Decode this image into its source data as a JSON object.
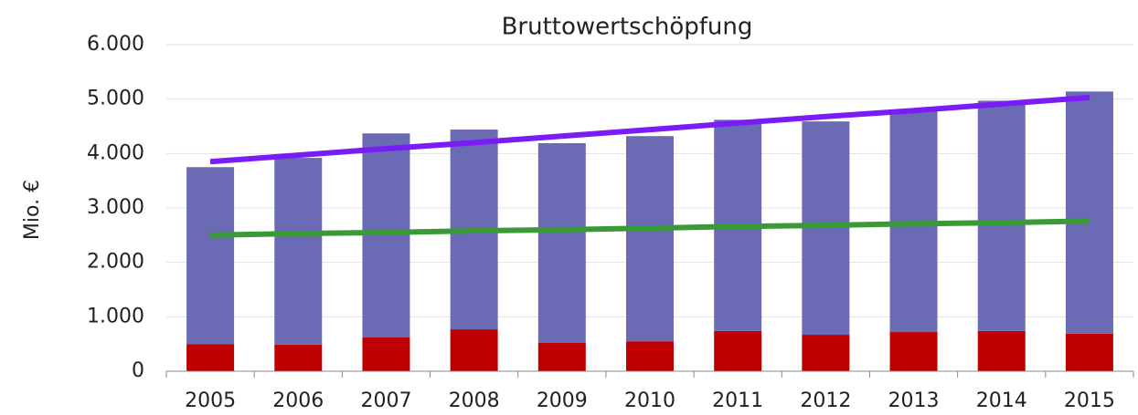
{
  "chart_data": {
    "type": "bar",
    "stacked": true,
    "title": "Bruttowertschöpfung",
    "y_label": "Mio. €",
    "categories": [
      "2005",
      "2006",
      "2007",
      "2008",
      "2009",
      "2010",
      "2011",
      "2012",
      "2013",
      "2014",
      "2015"
    ],
    "series": [
      {
        "type": "bar",
        "color": "#c00000",
        "values": [
          500,
          490,
          620,
          770,
          520,
          550,
          740,
          670,
          720,
          740,
          690
        ]
      },
      {
        "type": "bar",
        "color": "#6a6bb4",
        "values": [
          3250,
          3430,
          3750,
          3670,
          3670,
          3770,
          3880,
          3920,
          4090,
          4230,
          4450
        ]
      },
      {
        "type": "line",
        "color": "#7a1cf5",
        "values": [
          3850,
          3970,
          4090,
          4200,
          4320,
          4440,
          4560,
          4680,
          4790,
          4910,
          5030
        ]
      },
      {
        "type": "line",
        "color": "#3a9a36",
        "values": [
          2500,
          2530,
          2550,
          2580,
          2600,
          2630,
          2660,
          2680,
          2710,
          2730,
          2760
        ]
      }
    ],
    "ylim": [
      0,
      6000
    ],
    "yticks": [
      0,
      {
        "value": 1000,
        "label": "1.000"
      },
      {
        "value": 2000,
        "label": "2.000"
      },
      {
        "value": 3000,
        "label": "3.000"
      },
      {
        "value": 4000,
        "label": "4.000"
      },
      {
        "value": 5000,
        "label": "5.000"
      },
      {
        "value": 6000,
        "label": "6.000"
      }
    ],
    "grid": true
  }
}
